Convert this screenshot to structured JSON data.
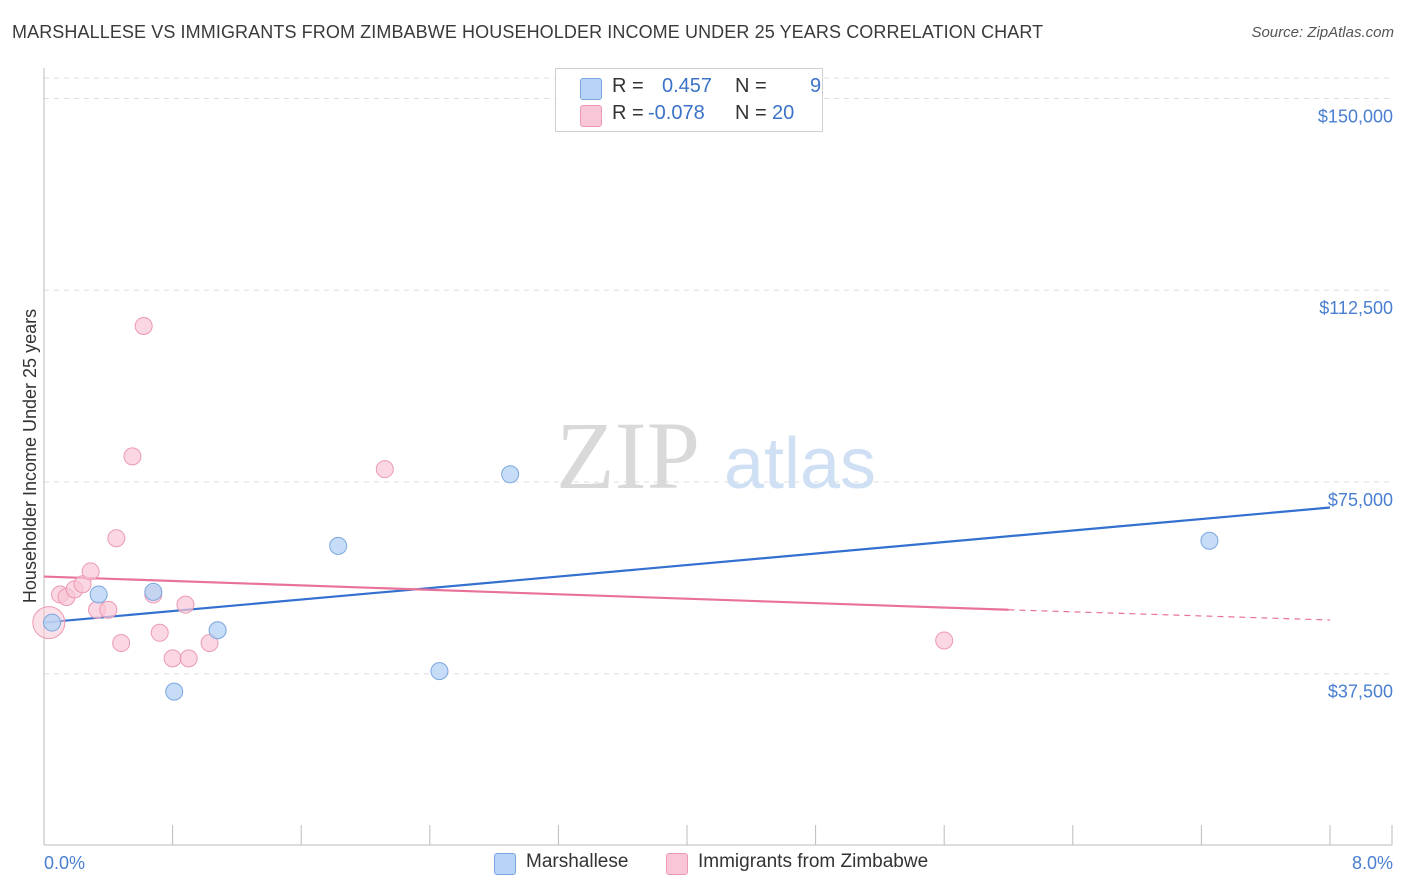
{
  "title": "MARSHALLESE VS IMMIGRANTS FROM ZIMBABWE HOUSEHOLDER INCOME UNDER 25 YEARS CORRELATION CHART",
  "source": "Source: ZipAtlas.com",
  "watermark": {
    "zip": "ZIP",
    "atlas": "atlas"
  },
  "legend": {
    "series1": {
      "r_label": "R =",
      "r_value": "0.457",
      "n_label": "N =",
      "n_value": "9"
    },
    "series2": {
      "r_label": "R =",
      "r_value": "-0.078",
      "n_label": "N =",
      "n_value": "20"
    }
  },
  "bottom_legend": {
    "series1": "Marshallese",
    "series2": "Immigrants from Zimbabwe"
  },
  "colors": {
    "blue_fill": "#b8d3f5",
    "blue_stroke": "#7aa7e0",
    "blue_line": "#3370d0",
    "pink_fill": "#f8c6d6",
    "pink_stroke": "#ec9ab4",
    "pink_line": "#e8729a",
    "tick_text": "#4a7fd0",
    "grid": "#dddddd"
  },
  "chart_data": {
    "type": "scatter",
    "title": "MARSHALLESE VS IMMIGRANTS FROM ZIMBABWE HOUSEHOLDER INCOME UNDER 25 YEARS CORRELATION CHART",
    "xlabel": "",
    "ylabel": "Householder Income Under 25 years",
    "xlim": [
      0,
      8
    ],
    "ylim": [
      4000,
      154000
    ],
    "x_tick_labels": [
      "0.0%",
      "8.0%"
    ],
    "y_ticks": [
      37500,
      75000,
      112500,
      150000
    ],
    "y_tick_labels": [
      "$37,500",
      "$75,000",
      "$112,500",
      "$150,000"
    ],
    "series": [
      {
        "name": "Marshallese",
        "r": 0.457,
        "n": 9,
        "points": [
          {
            "x": 0.05,
            "y": 47500
          },
          {
            "x": 0.34,
            "y": 53000
          },
          {
            "x": 0.68,
            "y": 53500
          },
          {
            "x": 0.81,
            "y": 34000
          },
          {
            "x": 1.08,
            "y": 46000
          },
          {
            "x": 1.83,
            "y": 62500
          },
          {
            "x": 2.46,
            "y": 38000
          },
          {
            "x": 2.9,
            "y": 76500
          },
          {
            "x": 7.25,
            "y": 63500
          }
        ],
        "trend": {
          "x": [
            0.0,
            8.0
          ],
          "y": [
            47500,
            70000
          ]
        }
      },
      {
        "name": "Immigrants from Zimbabwe",
        "r": -0.078,
        "n": 20,
        "points": [
          {
            "x": 0.03,
            "y": 47500,
            "big": true
          },
          {
            "x": 0.1,
            "y": 53000
          },
          {
            "x": 0.14,
            "y": 52500
          },
          {
            "x": 0.19,
            "y": 54000
          },
          {
            "x": 0.24,
            "y": 55000
          },
          {
            "x": 0.29,
            "y": 57500
          },
          {
            "x": 0.33,
            "y": 50000
          },
          {
            "x": 0.4,
            "y": 50000
          },
          {
            "x": 0.45,
            "y": 64000
          },
          {
            "x": 0.48,
            "y": 43500
          },
          {
            "x": 0.55,
            "y": 80000
          },
          {
            "x": 0.62,
            "y": 105500
          },
          {
            "x": 0.68,
            "y": 53000
          },
          {
            "x": 0.72,
            "y": 45500
          },
          {
            "x": 0.8,
            "y": 40500
          },
          {
            "x": 0.88,
            "y": 51000
          },
          {
            "x": 0.9,
            "y": 40500
          },
          {
            "x": 1.03,
            "y": 43500
          },
          {
            "x": 2.12,
            "y": 77500
          },
          {
            "x": 5.6,
            "y": 44000
          }
        ],
        "trend": {
          "x": [
            0.0,
            6.0
          ],
          "y": [
            56500,
            50000
          ]
        },
        "trend_dashed": {
          "x": [
            6.0,
            8.0
          ],
          "y": [
            50000,
            48000
          ]
        }
      }
    ]
  }
}
